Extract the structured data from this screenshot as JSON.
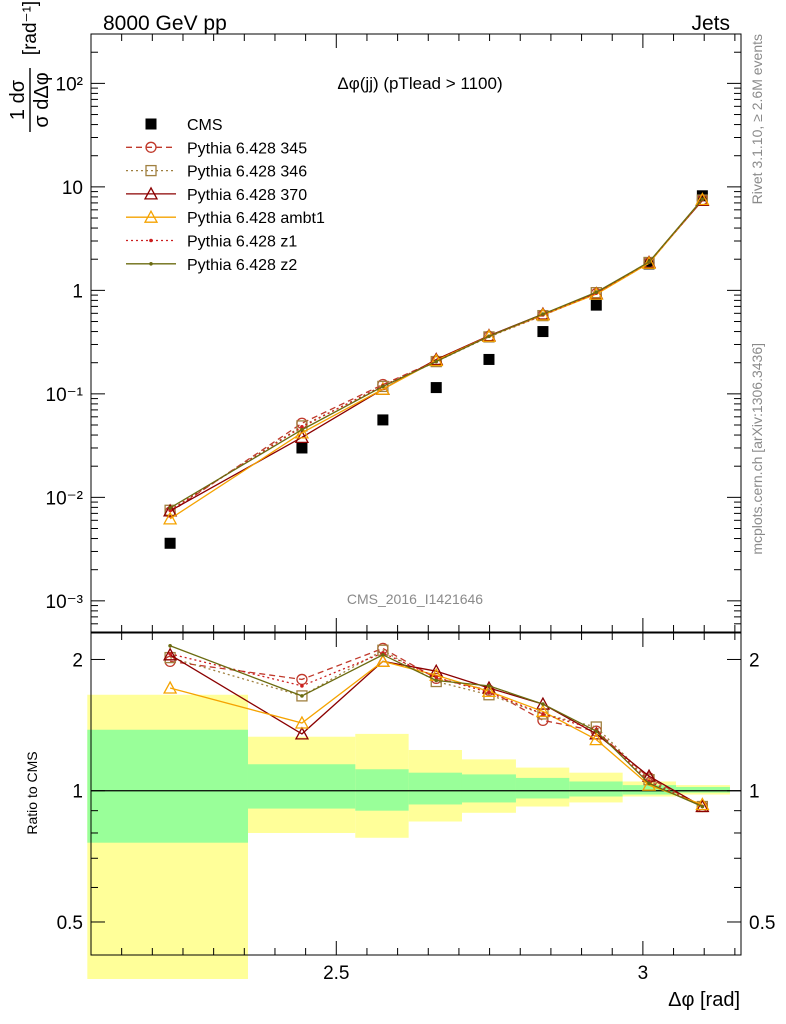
{
  "header": {
    "energy_label": "8000 GeV pp",
    "process_label": "Jets",
    "plot_title": "Δφ(jj) (pTlead >  1100)",
    "analysis_id": "CMS_2016_I1421646",
    "side_label_top": "Rivet 3.1.10, ≥ 2.6M events",
    "side_label_bottom": "mcplots.cern.ch [arXiv:1306.3436]"
  },
  "axes": {
    "ylabel_fraction_num": "1 dσ",
    "ylabel_fraction_den": "σ dΔφ",
    "ylabel_unit": "[rad⁻¹]",
    "xlabel": "Δφ [rad]",
    "ratio_ylabel": "Ratio to CMS"
  },
  "legend": [
    {
      "label": "CMS",
      "color": "#000000",
      "style": "solid",
      "marker": "square-filled"
    },
    {
      "label": "Pythia 6.428 345",
      "color": "#c0392b",
      "style": "dashed",
      "marker": "circle-open"
    },
    {
      "label": "Pythia 6.428 346",
      "color": "#a08040",
      "style": "dotted",
      "marker": "square-open"
    },
    {
      "label": "Pythia 6.428 370",
      "color": "#8b0000",
      "style": "solid",
      "marker": "triangle-open"
    },
    {
      "label": "Pythia 6.428 ambt1",
      "color": "#f5a300",
      "style": "solid",
      "marker": "triangle-open"
    },
    {
      "label": "Pythia 6.428 z1",
      "color": "#cc1f1f",
      "style": "dotted",
      "marker": "dot"
    },
    {
      "label": "Pythia 6.428 z2",
      "color": "#6b6b10",
      "style": "solid",
      "marker": "dot"
    }
  ],
  "chart_data": {
    "type": "scatter",
    "xscale": "linear",
    "yscale": "log",
    "xlim": [
      2.1,
      3.16
    ],
    "ylim": [
      0.0005,
      300
    ],
    "x_ticks": [
      2.5,
      3
    ],
    "x_tick_labels": [
      "2.5",
      "3"
    ],
    "y_ticks": [
      0.001,
      0.01,
      0.1,
      1,
      10,
      100
    ],
    "y_tick_labels": [
      "10⁻³",
      "10⁻²",
      "10⁻¹",
      "1",
      "10",
      "10²"
    ],
    "x": [
      2.229,
      2.444,
      2.576,
      2.663,
      2.749,
      2.837,
      2.924,
      3.01,
      3.097
    ],
    "series": [
      {
        "name": "CMS",
        "values": [
          0.0036,
          0.03,
          0.056,
          0.115,
          0.215,
          0.4,
          0.72,
          1.8,
          8.2
        ]
      },
      {
        "name": "Pythia 6.428 345",
        "values": [
          0.0072,
          0.052,
          0.123,
          0.208,
          0.36,
          0.575,
          0.93,
          1.84,
          7.5
        ]
      },
      {
        "name": "Pythia 6.428 346",
        "values": [
          0.0075,
          0.049,
          0.118,
          0.205,
          0.355,
          0.57,
          0.95,
          1.86,
          7.45
        ]
      },
      {
        "name": "Pythia 6.428 370",
        "values": [
          0.0074,
          0.038,
          0.111,
          0.215,
          0.365,
          0.59,
          0.93,
          1.86,
          7.4
        ]
      },
      {
        "name": "Pythia 6.428 ambt1",
        "values": [
          0.0062,
          0.042,
          0.111,
          0.21,
          0.36,
          0.58,
          0.92,
          1.83,
          7.55
        ]
      },
      {
        "name": "Pythia 6.428 z1",
        "values": [
          0.0075,
          0.048,
          0.12,
          0.207,
          0.36,
          0.58,
          0.94,
          1.87,
          7.5
        ]
      },
      {
        "name": "Pythia 6.428 z2",
        "values": [
          0.0079,
          0.045,
          0.118,
          0.205,
          0.36,
          0.59,
          0.96,
          1.88,
          7.6
        ]
      }
    ],
    "ratio": {
      "ylim": [
        0.42,
        2.3
      ],
      "y_ticks": [
        0.5,
        1,
        2
      ],
      "y_tick_labels": [
        "0.5",
        "1",
        "2"
      ],
      "bins": [
        2.094,
        2.356,
        2.531,
        2.618,
        2.705,
        2.793,
        2.88,
        2.967,
        3.054,
        3.142
      ],
      "stat_band": [
        [
          0.76,
          1.38
        ],
        [
          0.91,
          1.15
        ],
        [
          0.9,
          1.12
        ],
        [
          0.93,
          1.1
        ],
        [
          0.94,
          1.09
        ],
        [
          0.96,
          1.07
        ],
        [
          0.97,
          1.05
        ],
        [
          0.98,
          1.03
        ],
        [
          0.99,
          1.02
        ]
      ],
      "total_band": [
        [
          0.37,
          1.66
        ],
        [
          0.8,
          1.33
        ],
        [
          0.78,
          1.35
        ],
        [
          0.85,
          1.24
        ],
        [
          0.89,
          1.18
        ],
        [
          0.92,
          1.13
        ],
        [
          0.94,
          1.1
        ],
        [
          0.97,
          1.05
        ],
        [
          0.98,
          1.03
        ]
      ],
      "series": [
        {
          "name": "Pythia 6.428 345",
          "values": [
            1.98,
            1.8,
            2.12,
            1.81,
            1.7,
            1.45,
            1.37,
            1.07,
            0.92
          ]
        },
        {
          "name": "Pythia 6.428 346",
          "values": [
            2.02,
            1.65,
            2.1,
            1.78,
            1.66,
            1.5,
            1.4,
            1.06,
            0.92
          ]
        },
        {
          "name": "Pythia 6.428 370",
          "values": [
            2.05,
            1.35,
            1.98,
            1.88,
            1.72,
            1.58,
            1.35,
            1.08,
            0.92
          ]
        },
        {
          "name": "Pythia 6.428 ambt1",
          "values": [
            1.72,
            1.43,
            1.98,
            1.84,
            1.69,
            1.52,
            1.31,
            1.03,
            0.93
          ]
        },
        {
          "name": "Pythia 6.428 z1",
          "values": [
            2.06,
            1.74,
            2.07,
            1.82,
            1.68,
            1.5,
            1.38,
            1.05,
            0.92
          ]
        },
        {
          "name": "Pythia 6.428 z2",
          "values": [
            2.15,
            1.65,
            2.05,
            1.79,
            1.74,
            1.58,
            1.37,
            1.04,
            0.92
          ]
        }
      ]
    }
  }
}
